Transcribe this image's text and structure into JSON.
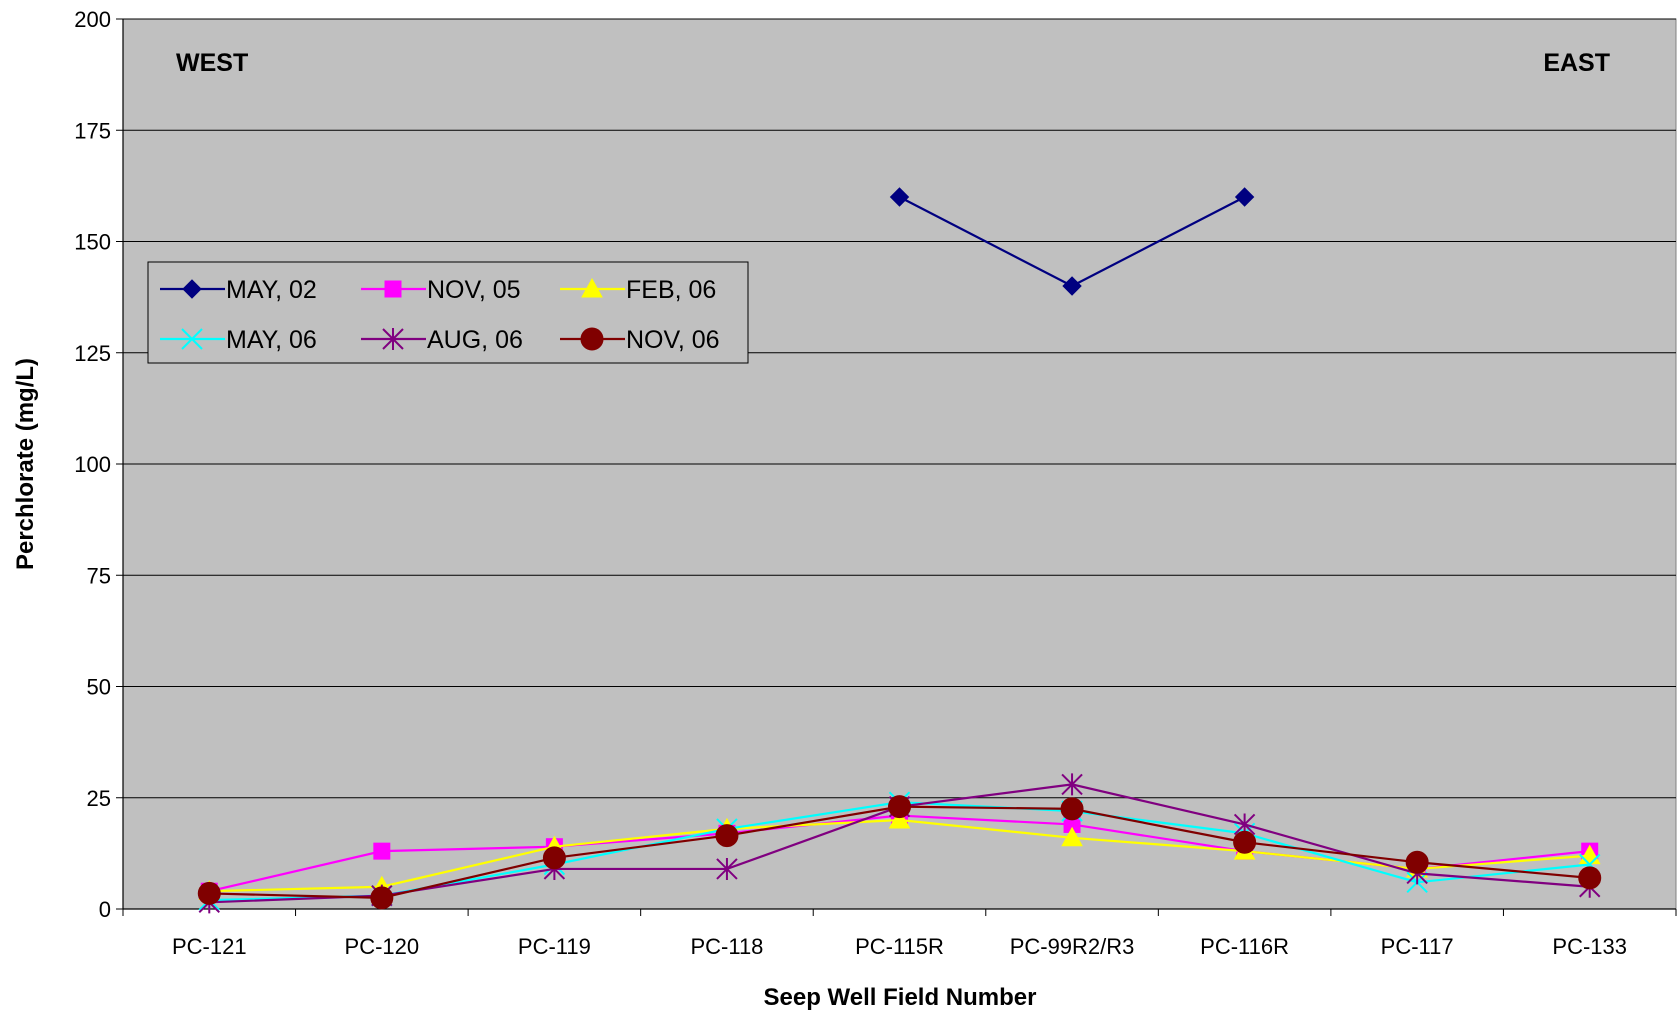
{
  "chart_data": {
    "type": "line",
    "xlabel": "Seep Well Field Number",
    "ylabel": "Perchlorate (mg/L)",
    "ylim": [
      0,
      200
    ],
    "yticks": [
      0,
      25,
      50,
      75,
      100,
      125,
      150,
      175,
      200
    ],
    "categories": [
      "PC-121",
      "PC-120",
      "PC-119",
      "PC-118",
      "PC-115R",
      "PC-99R2/R3",
      "PC-116R",
      "PC-117",
      "PC-133"
    ],
    "annotations": {
      "left": "WEST",
      "right": "EAST"
    },
    "grid": "horizontal",
    "legend_position": "upper-left",
    "plot_background": "#c0c0c0",
    "series": [
      {
        "name": "MAY, 02",
        "color": "#000080",
        "marker": "diamond",
        "values": [
          null,
          null,
          null,
          null,
          160,
          140,
          160,
          null,
          null
        ]
      },
      {
        "name": "NOV, 05",
        "color": "#ff00ff",
        "marker": "square",
        "values": [
          4,
          13,
          14,
          17,
          21,
          19,
          13,
          9,
          13
        ]
      },
      {
        "name": "FEB, 06",
        "color": "#ffff00",
        "marker": "triangle",
        "values": [
          4,
          5,
          14,
          18,
          20,
          16,
          13,
          9,
          12
        ]
      },
      {
        "name": "MAY, 06",
        "color": "#00ffff",
        "marker": "x",
        "values": [
          2,
          3,
          10,
          18,
          24,
          22,
          17,
          6,
          10
        ]
      },
      {
        "name": "AUG, 06",
        "color": "#800080",
        "marker": "star",
        "values": [
          1.5,
          3,
          9,
          9,
          23,
          28,
          19,
          8,
          5
        ]
      },
      {
        "name": "NOV, 06",
        "color": "#800000",
        "marker": "circle",
        "values": [
          3.5,
          2.5,
          11.5,
          16.5,
          23,
          22.5,
          15,
          10.5,
          7
        ]
      }
    ]
  }
}
